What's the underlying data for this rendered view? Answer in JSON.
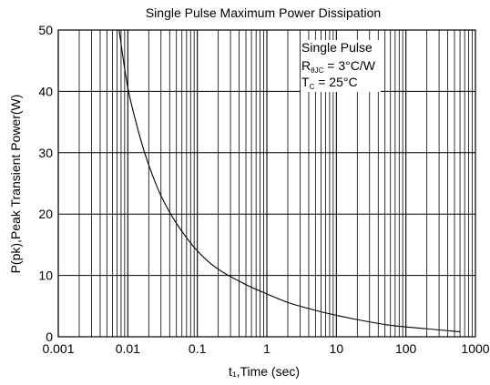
{
  "chart_data": {
    "type": "line",
    "title": "Single Pulse Maximum Power Dissipation",
    "xlabel": "t₁,Time (sec)",
    "ylabel": "P(pk),Peak Transient Power(W)",
    "x_scale": "log",
    "xlim": [
      0.001,
      1000
    ],
    "ylim": [
      0,
      50
    ],
    "x_ticks": [
      "0.001",
      "0.01",
      "0.1",
      "1",
      "10",
      "100",
      "1000"
    ],
    "y_ticks": [
      "0",
      "10",
      "20",
      "30",
      "40",
      "50"
    ],
    "grid": true,
    "annotation": {
      "line1": "Single Pulse",
      "line2_main": "R",
      "line2_sub": "θJC",
      "line2_rest": " = 3°C/W",
      "line3_main": "T",
      "line3_sub": "C",
      "line3_rest": " = 25°C"
    },
    "series": [
      {
        "x": [
          0.0075,
          0.01,
          0.015,
          0.02,
          0.03,
          0.05,
          0.1,
          0.2,
          0.5,
          1,
          2,
          5,
          10,
          20,
          50,
          100,
          200,
          600
        ],
        "values": [
          50,
          40.6,
          32.5,
          28,
          23,
          18.5,
          14,
          11,
          8.5,
          7,
          5.6,
          4.3,
          3.5,
          2.8,
          2.0,
          1.6,
          1.3,
          0.8
        ]
      }
    ]
  }
}
